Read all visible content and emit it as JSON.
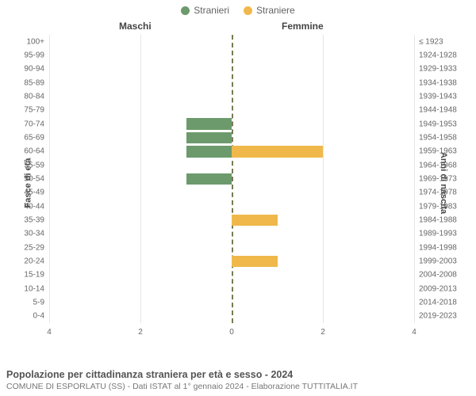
{
  "legend": {
    "male_label": "Stranieri",
    "female_label": "Straniere",
    "male_color": "#6c9a6c",
    "female_color": "#f0b84b"
  },
  "gender_headers": {
    "male": "Maschi",
    "female": "Femmine"
  },
  "axis_labels": {
    "left": "Fasce di età",
    "right": "Anni di nascita"
  },
  "chart": {
    "type": "population-pyramid",
    "xlim": 4,
    "xticks": [
      4,
      2,
      0,
      2,
      4
    ],
    "grid_color": "#e6e6e6",
    "centerline_color": "#7a7a52",
    "background_color": "#ffffff",
    "bar_colors": {
      "male": "#6c9a6c",
      "female": "#f0b84b"
    },
    "tick_fontsize": 10,
    "label_fontsize": 11,
    "rows": [
      {
        "age": "100+",
        "birth": "≤ 1923",
        "male": 0,
        "female": 0
      },
      {
        "age": "95-99",
        "birth": "1924-1928",
        "male": 0,
        "female": 0
      },
      {
        "age": "90-94",
        "birth": "1929-1933",
        "male": 0,
        "female": 0
      },
      {
        "age": "85-89",
        "birth": "1934-1938",
        "male": 0,
        "female": 0
      },
      {
        "age": "80-84",
        "birth": "1939-1943",
        "male": 0,
        "female": 0
      },
      {
        "age": "75-79",
        "birth": "1944-1948",
        "male": 0,
        "female": 0
      },
      {
        "age": "70-74",
        "birth": "1949-1953",
        "male": 1,
        "female": 0
      },
      {
        "age": "65-69",
        "birth": "1954-1958",
        "male": 1,
        "female": 0
      },
      {
        "age": "60-64",
        "birth": "1959-1963",
        "male": 1,
        "female": 2
      },
      {
        "age": "55-59",
        "birth": "1964-1968",
        "male": 0,
        "female": 0
      },
      {
        "age": "50-54",
        "birth": "1969-1973",
        "male": 1,
        "female": 0
      },
      {
        "age": "45-49",
        "birth": "1974-1978",
        "male": 0,
        "female": 0
      },
      {
        "age": "40-44",
        "birth": "1979-1983",
        "male": 0,
        "female": 0
      },
      {
        "age": "35-39",
        "birth": "1984-1988",
        "male": 0,
        "female": 1
      },
      {
        "age": "30-34",
        "birth": "1989-1993",
        "male": 0,
        "female": 0
      },
      {
        "age": "25-29",
        "birth": "1994-1998",
        "male": 0,
        "female": 0
      },
      {
        "age": "20-24",
        "birth": "1999-2003",
        "male": 0,
        "female": 1
      },
      {
        "age": "15-19",
        "birth": "2004-2008",
        "male": 0,
        "female": 0
      },
      {
        "age": "10-14",
        "birth": "2009-2013",
        "male": 0,
        "female": 0
      },
      {
        "age": "5-9",
        "birth": "2014-2018",
        "male": 0,
        "female": 0
      },
      {
        "age": "0-4",
        "birth": "2019-2023",
        "male": 0,
        "female": 0
      }
    ]
  },
  "footer": {
    "title": "Popolazione per cittadinanza straniera per età e sesso - 2024",
    "subtitle": "COMUNE DI ESPORLATU (SS) - Dati ISTAT al 1° gennaio 2024 - Elaborazione TUTTITALIA.IT"
  }
}
